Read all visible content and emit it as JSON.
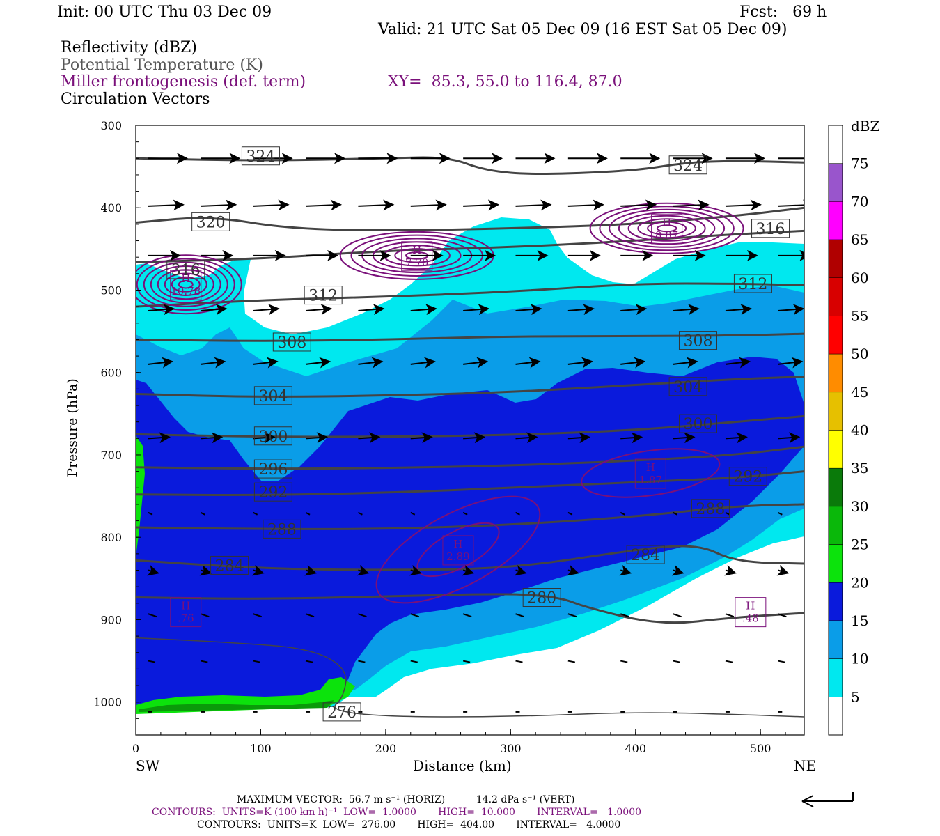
{
  "header": {
    "init": "Init: 00 UTC Thu 03 Dec 09",
    "fcst": "Fcst:   69 h",
    "valid": "Valid: 21 UTC Sat 05 Dec 09 (16 EST Sat 05 Dec 09)",
    "fields": [
      "Reflectivity (dBZ)",
      "Potential Temperature (K)",
      "Miller frontogenesis (def. term)",
      "Circulation Vectors"
    ],
    "xy": "XY=  85.3, 55.0 to 116.4, 87.0"
  },
  "colors": {
    "theta": "#444444",
    "fronto": "#7a107a",
    "cyan": "#00e8ef",
    "lightblue": "#0a9de8",
    "blue": "#0a1adc",
    "green": "#0ce30c",
    "darkgreen": "#0a9a0a"
  },
  "chart_data": {
    "type": "cross-section",
    "xlabel": "Distance (km)",
    "ylabel": "Pressure (hPa)",
    "xlim": [
      0,
      535
    ],
    "ylim": [
      1040,
      300
    ],
    "x_ticks": [
      "0",
      "100",
      "200",
      "300",
      "400",
      "500"
    ],
    "y_ticks": [
      "300",
      "400",
      "500",
      "600",
      "700",
      "800",
      "900",
      "1000"
    ],
    "x_end_labels": {
      "left": "SW",
      "right": "NE"
    },
    "colorbar": {
      "unit": "dBZ",
      "labels": [
        "5",
        "10",
        "15",
        "20",
        "25",
        "30",
        "35",
        "40",
        "45",
        "50",
        "55",
        "60",
        "65",
        "70",
        "75"
      ],
      "colors": [
        "#ffffff",
        "#00e8ef",
        "#0a9de8",
        "#0a1adc",
        "#0ce30c",
        "#0ab80a",
        "#0a7a0a",
        "#ffff00",
        "#e6c000",
        "#ff8c00",
        "#ff0000",
        "#d80000",
        "#b00000",
        "#ff00ff",
        "#9955cc",
        "#ffffff"
      ]
    },
    "theta_contours": [
      {
        "label": "324",
        "points": [
          [
            0,
            340
          ],
          [
            100,
            343
          ],
          [
            200,
            340
          ],
          [
            250,
            338
          ],
          [
            280,
            355
          ],
          [
            320,
            360
          ],
          [
            400,
            355
          ],
          [
            440,
            345
          ],
          [
            480,
            343
          ],
          [
            535,
            345
          ]
        ]
      },
      {
        "label": "320",
        "points": [
          [
            0,
            418
          ],
          [
            60,
            410
          ],
          [
            120,
            425
          ],
          [
            200,
            428
          ],
          [
            300,
            425
          ],
          [
            400,
            420
          ],
          [
            480,
            410
          ],
          [
            535,
            400
          ]
        ]
      },
      {
        "label": "316",
        "points": [
          [
            0,
            466
          ],
          [
            100,
            462
          ],
          [
            200,
            452
          ],
          [
            300,
            448
          ],
          [
            400,
            440
          ],
          [
            480,
            432
          ],
          [
            535,
            428
          ]
        ]
      },
      {
        "label": "312",
        "points": [
          [
            0,
            520
          ],
          [
            100,
            512
          ],
          [
            200,
            508
          ],
          [
            300,
            502
          ],
          [
            400,
            492
          ],
          [
            480,
            492
          ],
          [
            535,
            494
          ]
        ]
      },
      {
        "label": "308",
        "points": [
          [
            0,
            560
          ],
          [
            100,
            562
          ],
          [
            200,
            560
          ],
          [
            300,
            556
          ],
          [
            400,
            556
          ],
          [
            480,
            555
          ],
          [
            535,
            553
          ]
        ]
      },
      {
        "label": "304",
        "points": [
          [
            0,
            626
          ],
          [
            100,
            630
          ],
          [
            200,
            628
          ],
          [
            300,
            624
          ],
          [
            400,
            615
          ],
          [
            480,
            608
          ],
          [
            535,
            605
          ]
        ]
      },
      {
        "label": "300",
        "points": [
          [
            0,
            675
          ],
          [
            100,
            678
          ],
          [
            200,
            678
          ],
          [
            300,
            676
          ],
          [
            400,
            670
          ],
          [
            480,
            660
          ],
          [
            535,
            653
          ]
        ]
      },
      {
        "label": "296",
        "points": [
          [
            0,
            715
          ],
          [
            100,
            717
          ],
          [
            200,
            716
          ],
          [
            300,
            713
          ],
          [
            400,
            707
          ],
          [
            480,
            700
          ],
          [
            535,
            690
          ]
        ]
      },
      {
        "label": "292",
        "points": [
          [
            0,
            748
          ],
          [
            100,
            749
          ],
          [
            200,
            746
          ],
          [
            300,
            740
          ],
          [
            400,
            733
          ],
          [
            480,
            728
          ],
          [
            535,
            720
          ]
        ]
      },
      {
        "label": "288",
        "points": [
          [
            0,
            788
          ],
          [
            100,
            790
          ],
          [
            200,
            790
          ],
          [
            300,
            785
          ],
          [
            400,
            775
          ],
          [
            480,
            762
          ],
          [
            535,
            760
          ]
        ]
      },
      {
        "label": "284",
        "points": [
          [
            0,
            828
          ],
          [
            100,
            838
          ],
          [
            200,
            840
          ],
          [
            300,
            838
          ],
          [
            400,
            815
          ],
          [
            450,
            808
          ],
          [
            480,
            830
          ],
          [
            535,
            832
          ]
        ]
      },
      {
        "label": "280",
        "points": [
          [
            0,
            873
          ],
          [
            100,
            875
          ],
          [
            200,
            872
          ],
          [
            300,
            868
          ],
          [
            340,
            873
          ],
          [
            360,
            885
          ],
          [
            420,
            907
          ],
          [
            480,
            897
          ],
          [
            535,
            892
          ]
        ]
      },
      {
        "label": "276",
        "points": [
          [
            0,
            922
          ],
          [
            80,
            928
          ],
          [
            140,
            935
          ],
          [
            170,
            960
          ],
          [
            166,
            995
          ],
          [
            155,
            1010
          ],
          [
            200,
            1018
          ],
          [
            300,
            1018
          ],
          [
            400,
            1012
          ],
          [
            480,
            1015
          ],
          [
            535,
            1018
          ]
        ]
      }
    ],
    "theta_label_positions": [
      {
        "label": "324",
        "x": 100,
        "y": 337
      },
      {
        "label": "324",
        "x": 442,
        "y": 348
      },
      {
        "label": "320",
        "x": 60,
        "y": 417
      },
      {
        "label": "316",
        "x": 508,
        "y": 425
      },
      {
        "label": "316",
        "x": 40,
        "y": 475
      },
      {
        "label": "312",
        "x": 150,
        "y": 506
      },
      {
        "label": "312",
        "x": 494,
        "y": 492
      },
      {
        "label": "308",
        "x": 125,
        "y": 563
      },
      {
        "label": "308",
        "x": 450,
        "y": 561
      },
      {
        "label": "304",
        "x": 110,
        "y": 628
      },
      {
        "label": "304",
        "x": 442,
        "y": 617
      },
      {
        "label": "300",
        "x": 110,
        "y": 677
      },
      {
        "label": "300",
        "x": 450,
        "y": 662
      },
      {
        "label": "296",
        "x": 110,
        "y": 717
      },
      {
        "label": "292",
        "x": 110,
        "y": 745
      },
      {
        "label": "292",
        "x": 490,
        "y": 726
      },
      {
        "label": "288",
        "x": 117,
        "y": 790
      },
      {
        "label": "288",
        "x": 460,
        "y": 765
      },
      {
        "label": "284",
        "x": 75,
        "y": 834
      },
      {
        "label": "284",
        "x": 408,
        "y": 821
      },
      {
        "label": "280",
        "x": 325,
        "y": 873
      },
      {
        "label": "276",
        "x": 165,
        "y": 1012
      }
    ],
    "fronto_maxima": [
      {
        "label": "H",
        "value": "10.78",
        "x": 40,
        "y": 493
      },
      {
        "label": "H",
        "value": "7.70",
        "x": 225,
        "y": 458
      },
      {
        "label": "H",
        "value": "8.87",
        "x": 425,
        "y": 425
      },
      {
        "label": "H",
        "value": "1.87",
        "x": 412,
        "y": 722
      },
      {
        "label": "H",
        "value": "2.89",
        "x": 258,
        "y": 815
      },
      {
        "label": "H",
        "value": ".76",
        "x": 40,
        "y": 890
      },
      {
        "label": "H",
        "value": ".48",
        "x": 492,
        "y": 890
      }
    ],
    "max_vector": {
      "horiz": "56.7 m s⁻¹ (HORIZ)",
      "vert": "14.2 dPa s⁻¹ (VERT)"
    }
  },
  "footer": {
    "line1": "MAXIMUM VECTOR:  56.7 m s⁻¹ (HORIZ)          14.2 dPa s⁻¹ (VERT)",
    "line2": "CONTOURS:  UNITS=K (100 km h)⁻¹  LOW=  1.0000       HIGH=  10.000       INTERVAL=   1.0000",
    "line3": "CONTOURS:  UNITS=K  LOW=  276.00       HIGH=  404.00       INTERVAL=   4.0000"
  }
}
